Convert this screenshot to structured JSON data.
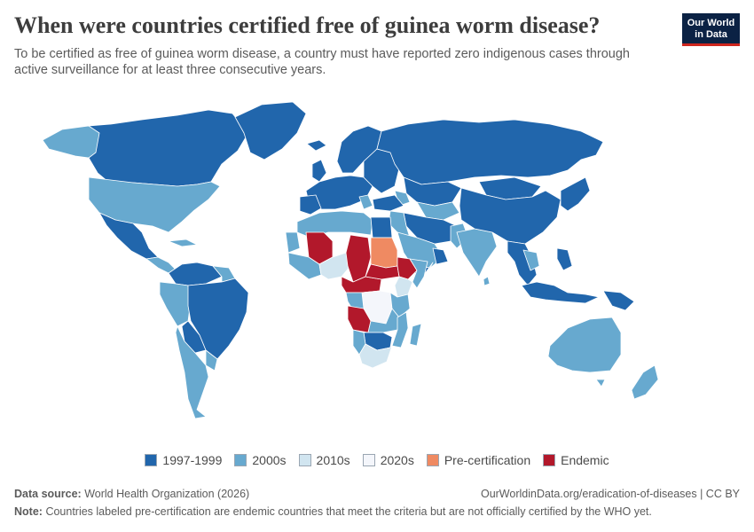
{
  "header": {
    "title": "When were countries certified free of guinea worm disease?",
    "subtitle": "To be certified as free of guinea worm disease, a country must have reported zero indigenous cases through active surveillance for at least three consecutive years."
  },
  "logo": {
    "line1": "Our World",
    "line2": "in Data"
  },
  "colors": {
    "c1997": "#2166ac",
    "c2000s": "#67a9cf",
    "c2010s": "#d1e5f0",
    "c2020s": "#f4f6fb",
    "pre": "#ef8a62",
    "endemic": "#b2182b",
    "ocean": "#ffffff",
    "border": "#ffffff"
  },
  "legend": [
    {
      "label": "1997-1999",
      "color": "#2166ac"
    },
    {
      "label": "2000s",
      "color": "#67a9cf"
    },
    {
      "label": "2010s",
      "color": "#d1e5f0"
    },
    {
      "label": "2020s",
      "color": "#f4f6fb"
    },
    {
      "label": "Pre-certification",
      "color": "#ef8a62"
    },
    {
      "label": "Endemic",
      "color": "#b2182b"
    }
  ],
  "footer": {
    "source_label": "Data source:",
    "source_text": "World Health Organization (2026)",
    "url": "OurWorldinData.org/eradication-of-diseases | CC BY",
    "note_label": "Note:",
    "note_text": "Countries labeled pre-certification are endemic countries that meet the criteria but are not officially certified by the WHO yet."
  }
}
